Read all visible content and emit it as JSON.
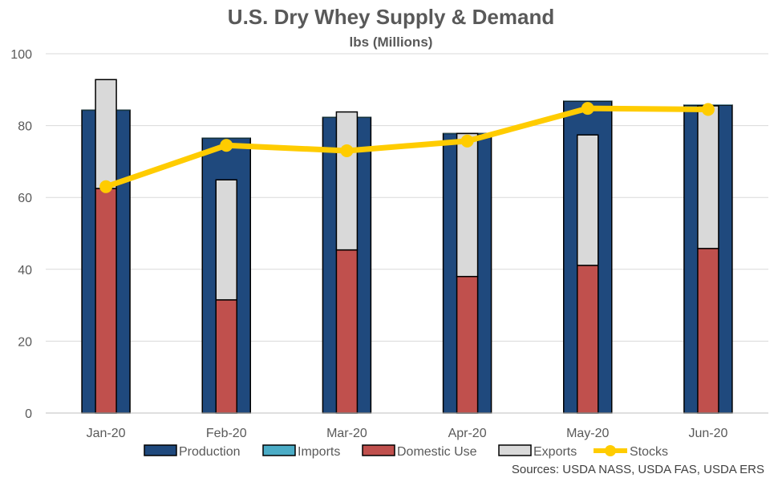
{
  "chart_data": {
    "type": "bar",
    "title": "U.S. Dry Whey Supply & Demand",
    "subtitle": "lbs (Millions)",
    "categories": [
      "Jan-20",
      "Feb-20",
      "Mar-20",
      "Apr-20",
      "May-20",
      "Jun-20"
    ],
    "ylim": [
      0,
      100
    ],
    "yticks": [
      0,
      20,
      40,
      60,
      80,
      100
    ],
    "grid": true,
    "legend_position": "bottom",
    "series": [
      {
        "name": "Production",
        "kind": "bar",
        "color": "#1F497D",
        "values": [
          84.3,
          76.5,
          82.3,
          77.8,
          86.8,
          85.7
        ]
      },
      {
        "name": "Imports",
        "kind": "bar",
        "color": "#4BACC6",
        "values": [
          0.1,
          0.1,
          0.1,
          0.1,
          0.1,
          0.1
        ]
      },
      {
        "name": "Domestic Use",
        "kind": "bar",
        "color": "#C0504D",
        "values": [
          62.5,
          31.5,
          45.4,
          38.0,
          41.1,
          45.8
        ]
      },
      {
        "name": "Exports",
        "kind": "bar",
        "color": "#D9D9D9",
        "values": [
          30.3,
          33.4,
          38.4,
          39.8,
          36.3,
          39.7
        ]
      },
      {
        "name": "Stocks",
        "kind": "line",
        "color": "#FFCC00",
        "values": [
          63.0,
          74.5,
          73.0,
          75.7,
          84.8,
          84.5
        ]
      }
    ],
    "source": "Sources: USDA NASS, USDA FAS, USDA ERS"
  }
}
